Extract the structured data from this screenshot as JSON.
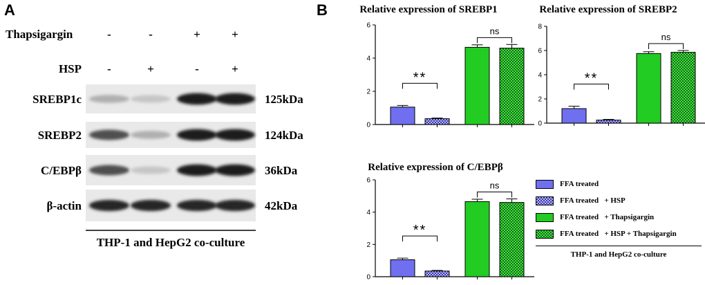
{
  "panel_a": {
    "letter": "A",
    "treatment_rows": [
      {
        "label": "Thapsigargin",
        "signs": [
          "-",
          "-",
          "+",
          "+"
        ]
      },
      {
        "label": "HSP",
        "signs": [
          "-",
          "+",
          "-",
          "+"
        ]
      }
    ],
    "bands": [
      {
        "protein": "SREBP1c",
        "size": "125kDa",
        "intensity": [
          0.25,
          0.15,
          0.95,
          0.95
        ]
      },
      {
        "protein": "SREBP2",
        "size": "124kDa",
        "intensity": [
          0.7,
          0.25,
          0.95,
          0.95
        ]
      },
      {
        "protein": "C/EBPβ",
        "size": "36kDa",
        "intensity": [
          0.7,
          0.15,
          0.95,
          0.95
        ]
      },
      {
        "protein": "β-actin",
        "size": "42kDa",
        "intensity": [
          0.9,
          0.9,
          0.9,
          0.9
        ]
      }
    ],
    "caption": "THP-1 and HepG2 co-culture"
  },
  "panel_b": {
    "letter": "B",
    "colors": {
      "blue": "#6f6ff0",
      "blue_check": "#3a3aa8",
      "green": "#22cc22",
      "green_check": "#0e6e0e"
    }
  },
  "chart_data": [
    {
      "type": "bar",
      "title": "Relative expression of SREBP1",
      "categories": [
        "FFA treated",
        "FFA treated + HSP",
        "FFA treated + Thapsigargin",
        "FFA treated + HSP + Thapsigargin"
      ],
      "values": [
        1.05,
        0.35,
        4.65,
        4.6
      ],
      "errors": [
        0.1,
        0.04,
        0.15,
        0.22
      ],
      "ylim": [
        0,
        6
      ],
      "yticks": [
        0,
        2,
        4,
        6
      ],
      "annotations": [
        {
          "between": [
            0,
            1
          ],
          "text": "**"
        },
        {
          "between": [
            2,
            3
          ],
          "text": "ns"
        }
      ]
    },
    {
      "type": "bar",
      "title": "Relative expression of SREBP2",
      "categories": [
        "FFA treated",
        "FFA treated + HSP",
        "FFA treated + Thapsigargin",
        "FFA treated + HSP + Thapsigargin"
      ],
      "values": [
        1.2,
        0.25,
        5.75,
        5.85
      ],
      "errors": [
        0.2,
        0.06,
        0.15,
        0.15
      ],
      "ylim": [
        0,
        8
      ],
      "yticks": [
        0,
        2,
        4,
        6,
        8
      ],
      "annotations": [
        {
          "between": [
            0,
            1
          ],
          "text": "**"
        },
        {
          "between": [
            2,
            3
          ],
          "text": "ns"
        }
      ]
    },
    {
      "type": "bar",
      "title": "Relative expression of C/EBPβ",
      "categories": [
        "FFA treated",
        "FFA treated + HSP",
        "FFA treated + Thapsigargin",
        "FFA treated + HSP + Thapsigargin"
      ],
      "values": [
        1.05,
        0.35,
        4.65,
        4.6
      ],
      "errors": [
        0.1,
        0.04,
        0.15,
        0.22
      ],
      "ylim": [
        0,
        6
      ],
      "yticks": [
        0,
        2,
        4,
        6
      ],
      "annotations": [
        {
          "between": [
            0,
            1
          ],
          "text": "**"
        },
        {
          "between": [
            2,
            3
          ],
          "text": "ns"
        }
      ]
    }
  ],
  "legend": {
    "items": [
      {
        "label": "FFA treated",
        "swatch": "blue"
      },
      {
        "label": "FFA treated   + HSP",
        "swatch": "blue_check"
      },
      {
        "label": "FFA treated   + Thapsigargin",
        "swatch": "green"
      },
      {
        "label": "FFA treated   + HSP + Thapsigargin",
        "swatch": "green_check"
      }
    ],
    "caption": "THP-1 and HepG2 co-culture"
  }
}
